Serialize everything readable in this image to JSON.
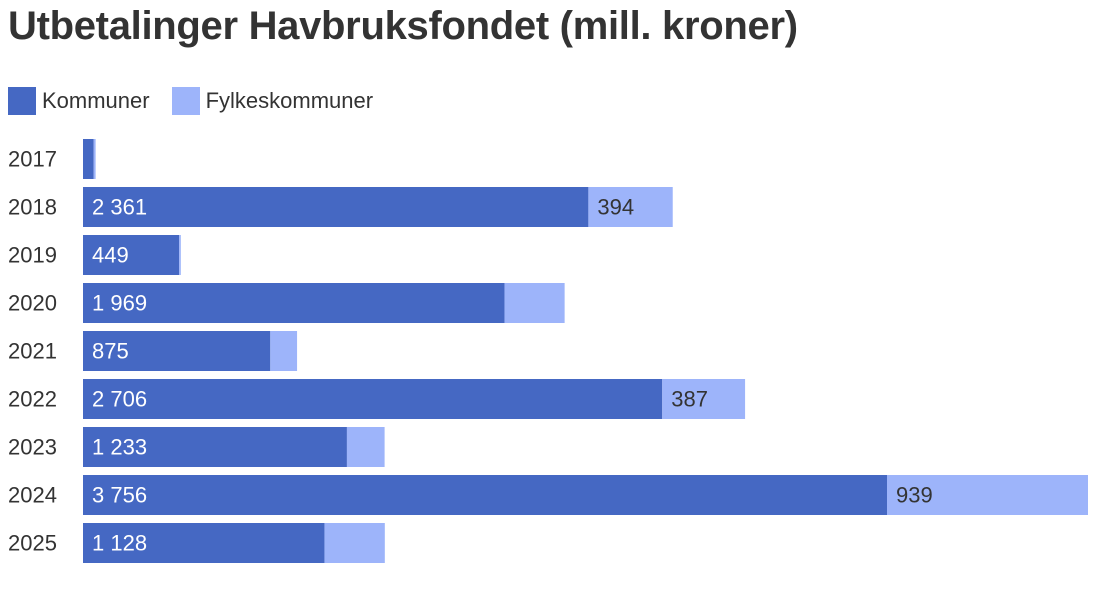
{
  "chart_data": {
    "type": "bar",
    "orientation": "horizontal",
    "stacked": true,
    "title": "Utbetalinger Havbruksfondet (mill. kroner)",
    "legend_position": "top-left",
    "grid": false,
    "categories": [
      "2017",
      "2018",
      "2019",
      "2020",
      "2021",
      "2022",
      "2023",
      "2024",
      "2025"
    ],
    "series": [
      {
        "name": "Kommuner",
        "color": "#4568c3",
        "values": [
          50,
          2361,
          449,
          1969,
          875,
          2706,
          1233,
          3756,
          1128
        ],
        "labels": [
          "",
          "2 361",
          "449",
          "1 969",
          "875",
          "2 706",
          "1 233",
          "3 756",
          "1 128"
        ]
      },
      {
        "name": "Fylkeskommuner",
        "color": "#9db4fa",
        "values": [
          9,
          394,
          8,
          281,
          125,
          387,
          176,
          939,
          282
        ],
        "labels": [
          "",
          "394",
          "",
          "",
          "",
          "387",
          "",
          "939",
          ""
        ]
      }
    ],
    "xlim": [
      0,
      4695
    ]
  }
}
